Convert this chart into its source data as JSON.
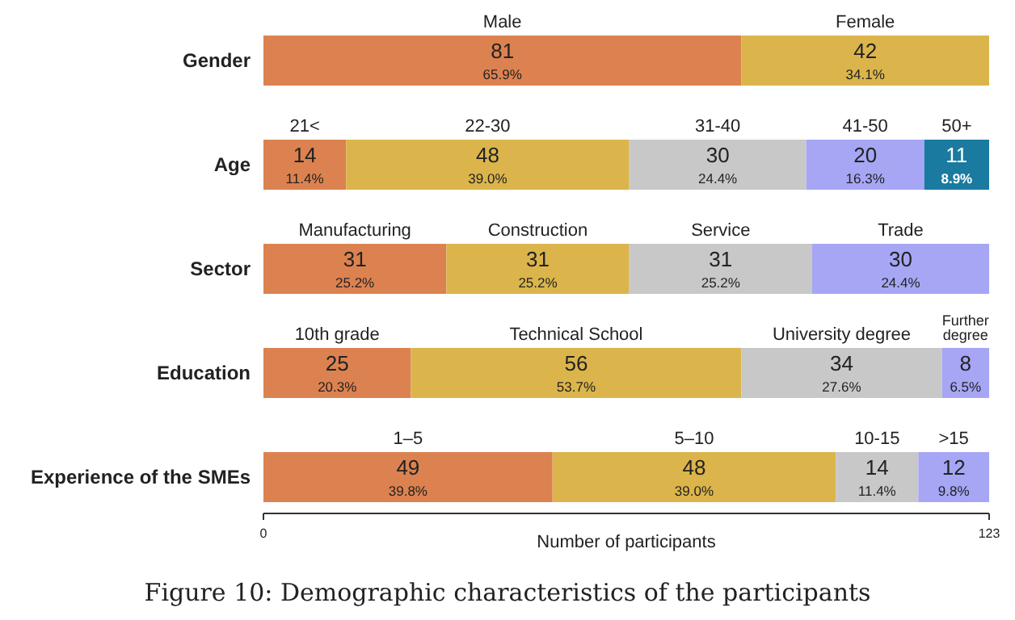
{
  "chart_data": {
    "type": "bar",
    "orientation": "horizontal",
    "stacked": true,
    "title": "Figure 10: Demographic characteristics of the participants",
    "xlabel": "Number of participants",
    "categories": [
      "Gender",
      "Age",
      "Sector",
      "Education",
      "Experience of the SMEs"
    ],
    "xlim": [
      0,
      123
    ],
    "xticks": [
      0,
      123
    ],
    "grid": false,
    "series": [
      {
        "name": "Male",
        "color": "#dc8250",
        "values": [
          81,
          null,
          null,
          null,
          null
        ],
        "value_labels": [
          "81\n65.9%",
          null,
          null,
          null,
          null
        ]
      },
      {
        "name": "Female",
        "color": "#dbb54b",
        "values": [
          42,
          null,
          null,
          null,
          null
        ],
        "value_labels": [
          "42\n34.1%",
          null,
          null,
          null,
          null
        ]
      },
      {
        "name": "21<",
        "color": "#dc8250",
        "values": [
          null,
          14,
          null,
          null,
          null
        ],
        "value_labels": [
          null,
          "14\n11.4%",
          null,
          null,
          null
        ]
      },
      {
        "name": "22-30",
        "color": "#dbb54b",
        "values": [
          null,
          48,
          null,
          null,
          null
        ],
        "value_labels": [
          null,
          "48\n39.0%",
          null,
          null,
          null
        ]
      },
      {
        "name": "31-40",
        "color": "#c8c8c8",
        "values": [
          null,
          30,
          null,
          null,
          null
        ],
        "value_labels": [
          null,
          "30\n24.4%",
          null,
          null,
          null
        ]
      },
      {
        "name": "41-50",
        "color": "#a6a6f5",
        "values": [
          null,
          20,
          null,
          null,
          null
        ],
        "value_labels": [
          null,
          "20\n16.3%",
          null,
          null,
          null
        ]
      },
      {
        "name": "50+",
        "color": "#1a7aa0",
        "values": [
          null,
          11,
          null,
          null,
          null
        ],
        "value_labels": [
          null,
          "11\n8.9%",
          null,
          null,
          null
        ]
      },
      {
        "name": "Manufacturing",
        "color": "#dc8250",
        "values": [
          null,
          null,
          31,
          null,
          null
        ],
        "value_labels": [
          null,
          null,
          "31\n25.2%",
          null,
          null
        ]
      },
      {
        "name": "Construction",
        "color": "#dbb54b",
        "values": [
          null,
          null,
          31,
          null,
          null
        ],
        "value_labels": [
          null,
          null,
          "31\n25.2%",
          null,
          null
        ]
      },
      {
        "name": "Service",
        "color": "#c8c8c8",
        "values": [
          null,
          null,
          31,
          null,
          null
        ],
        "value_labels": [
          null,
          null,
          "31\n25.2%",
          null,
          null
        ]
      },
      {
        "name": "Trade",
        "color": "#a6a6f5",
        "values": [
          null,
          null,
          30,
          null,
          null
        ],
        "value_labels": [
          null,
          null,
          "30\n24.4%",
          null,
          null
        ]
      },
      {
        "name": "10th grade",
        "color": "#dc8250",
        "values": [
          null,
          null,
          null,
          25,
          null
        ],
        "value_labels": [
          null,
          null,
          null,
          "25\n20.3%",
          null
        ]
      },
      {
        "name": "Technical School",
        "color": "#dbb54b",
        "values": [
          null,
          null,
          null,
          56,
          null
        ],
        "value_labels": [
          null,
          null,
          null,
          "56\n53.7%",
          null
        ]
      },
      {
        "name": "University degree",
        "color": "#c8c8c8",
        "values": [
          null,
          null,
          null,
          34,
          null
        ],
        "value_labels": [
          null,
          null,
          null,
          "34\n27.6%",
          null
        ]
      },
      {
        "name": "Further degree",
        "color": "#a6a6f5",
        "values": [
          null,
          null,
          null,
          8,
          null
        ],
        "value_labels": [
          null,
          null,
          null,
          "8\n6.5%",
          null
        ]
      },
      {
        "name": "1–5",
        "color": "#dc8250",
        "values": [
          null,
          null,
          null,
          null,
          49
        ],
        "value_labels": [
          null,
          null,
          null,
          null,
          "49\n39.8%"
        ]
      },
      {
        "name": "5–10",
        "color": "#dbb54b",
        "values": [
          null,
          null,
          null,
          null,
          48
        ],
        "value_labels": [
          null,
          null,
          null,
          null,
          "48\n39.0%"
        ]
      },
      {
        "name": "10-15",
        "color": "#c8c8c8",
        "values": [
          null,
          null,
          null,
          null,
          14
        ],
        "value_labels": [
          null,
          null,
          null,
          null,
          "14\n11.4%"
        ]
      },
      {
        "name": ">15",
        "color": "#a6a6f5",
        "values": [
          null,
          null,
          null,
          null,
          12
        ],
        "value_labels": [
          null,
          null,
          null,
          null,
          "12\n9.8%"
        ]
      }
    ]
  }
}
